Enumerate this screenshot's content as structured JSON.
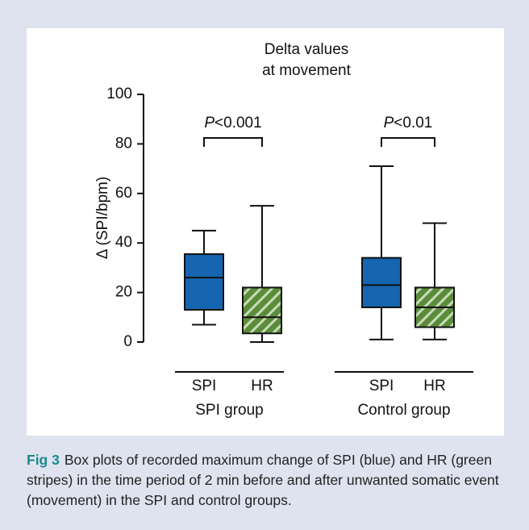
{
  "chart_data": {
    "type": "box",
    "title": [
      "Delta values",
      "at movement"
    ],
    "ylabel": "Δ (SPI/bpm)",
    "ylim": [
      0,
      100
    ],
    "yticks": [
      0,
      20,
      40,
      60,
      80,
      100
    ],
    "groups": [
      {
        "name": "SPI group",
        "annotation": {
          "italic": "P",
          "text": "<0.001"
        },
        "boxes": [
          {
            "label": "SPI",
            "color": "#1565b0",
            "pattern": "solid",
            "min": 7,
            "q1": 13,
            "median": 26,
            "q3": 35.5,
            "max": 45
          },
          {
            "label": "HR",
            "color": "#5b8c3a",
            "pattern": "stripes",
            "min": 0,
            "q1": 3.5,
            "median": 10,
            "q3": 22,
            "max": 55
          }
        ]
      },
      {
        "name": "Control group",
        "annotation": {
          "italic": "P",
          "text": "<0.01"
        },
        "boxes": [
          {
            "label": "SPI",
            "color": "#1565b0",
            "pattern": "solid",
            "min": 1,
            "q1": 14,
            "median": 23,
            "q3": 34,
            "max": 71
          },
          {
            "label": "HR",
            "color": "#5b8c3a",
            "pattern": "stripes",
            "min": 1,
            "q1": 6,
            "median": 14,
            "q3": 22,
            "max": 48
          }
        ]
      }
    ]
  },
  "caption": {
    "label": "Fig 3",
    "text": "Box plots of recorded maximum change of SPI (blue) and HR (green stripes) in the time period of 2 min before and after unwanted somatic event (movement) in the SPI and control groups."
  }
}
